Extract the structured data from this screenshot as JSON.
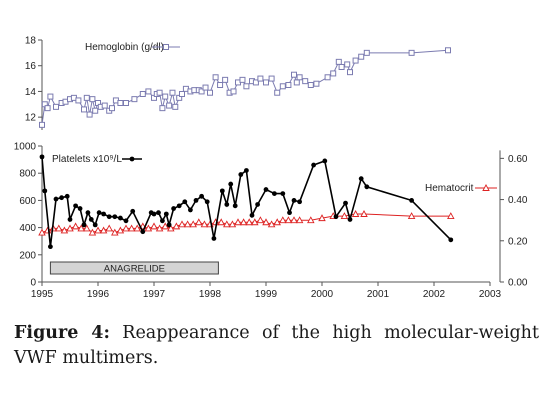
{
  "figure": {
    "caption_label": "Figure 4:",
    "caption_text": "Reappearance of the high molecular-weight VWF multimers."
  },
  "chart_data": [
    {
      "type": "line",
      "ylim": [
        11,
        18
      ],
      "yticks": [
        "12",
        "14",
        "16",
        "18"
      ],
      "series": [
        {
          "name": "Hemoglobin (g/dl)",
          "color": "#7b7bb0",
          "marker": "open-square",
          "x": [
            1995.0,
            1995.05,
            1995.1,
            1995.15,
            1995.25,
            1995.35,
            1995.42,
            1995.5,
            1995.57,
            1995.65,
            1995.75,
            1995.8,
            1995.85,
            1995.9,
            1995.95,
            1996.0,
            1996.05,
            1996.12,
            1996.2,
            1996.25,
            1996.32,
            1996.4,
            1996.5,
            1996.65,
            1996.8,
            1996.9,
            1997.0,
            1997.05,
            1997.1,
            1997.15,
            1997.2,
            1997.27,
            1997.33,
            1997.38,
            1997.45,
            1997.5,
            1997.57,
            1997.65,
            1997.72,
            1997.8,
            1997.85,
            1997.92,
            1998.0,
            1998.1,
            1998.18,
            1998.27,
            1998.35,
            1998.42,
            1998.5,
            1998.58,
            1998.65,
            1998.75,
            1998.82,
            1998.9,
            1999.0,
            1999.1,
            1999.2,
            1999.3,
            1999.4,
            1999.5,
            1999.55,
            1999.6,
            1999.7,
            1999.8,
            1999.9,
            2000.1,
            2000.2,
            2000.3,
            2000.35,
            2000.45,
            2000.5,
            2000.6,
            2000.7,
            2000.8,
            2001.6,
            2002.25
          ],
          "values": [
            11.4,
            13.0,
            12.7,
            13.6,
            12.8,
            13.1,
            13.2,
            13.4,
            13.5,
            13.3,
            12.6,
            13.5,
            12.2,
            13.4,
            12.5,
            13.1,
            12.8,
            12.9,
            12.5,
            12.7,
            13.3,
            13.1,
            13.1,
            13.4,
            13.8,
            14.0,
            13.5,
            13.8,
            13.9,
            12.7,
            13.6,
            12.9,
            13.9,
            12.8,
            13.5,
            13.8,
            14.2,
            14.0,
            14.1,
            14.1,
            14.0,
            14.3,
            13.9,
            15.1,
            14.5,
            14.9,
            13.9,
            14.0,
            14.7,
            14.9,
            14.4,
            14.8,
            14.7,
            15.0,
            14.7,
            15.0,
            13.9,
            14.4,
            14.5,
            15.3,
            14.7,
            15.1,
            14.8,
            14.5,
            14.6,
            15.1,
            15.4,
            16.3,
            15.9,
            16.1,
            15.5,
            16.4,
            16.7,
            17.0,
            17.0,
            17.2
          ]
        }
      ]
    },
    {
      "type": "line",
      "ylim": [
        0,
        1000
      ],
      "yticks": [
        "0",
        "200",
        "400",
        "600",
        "800",
        "1000"
      ],
      "y2lim": [
        0,
        0.66
      ],
      "y2ticks": [
        "0.00",
        "0.20",
        "0.40",
        "0.60"
      ],
      "xlim": [
        1995,
        2003
      ],
      "xticks": [
        "1995",
        "1996",
        "1997",
        "1998",
        "1999",
        "2000",
        "2001",
        "2002",
        "2003"
      ],
      "annotation": "ANAGRELIDE",
      "annotation_range": [
        1995.15,
        1998.15
      ],
      "series": [
        {
          "name": "Platelets x10⁹/L",
          "color": "#000000",
          "marker": "filled-circle",
          "axis": "left",
          "x": [
            1995.0,
            1995.05,
            1995.15,
            1995.25,
            1995.35,
            1995.45,
            1995.5,
            1995.6,
            1995.68,
            1995.75,
            1995.82,
            1995.88,
            1995.95,
            1996.02,
            1996.1,
            1996.2,
            1996.3,
            1996.4,
            1996.5,
            1996.62,
            1996.8,
            1996.95,
            1997.0,
            1997.08,
            1997.15,
            1997.22,
            1997.27,
            1997.35,
            1997.45,
            1997.55,
            1997.65,
            1997.75,
            1997.85,
            1997.95,
            1998.07,
            1998.22,
            1998.3,
            1998.37,
            1998.45,
            1998.55,
            1998.65,
            1998.75,
            1998.85,
            1999.0,
            1999.15,
            1999.3,
            1999.42,
            1999.5,
            1999.6,
            1999.85,
            2000.05,
            2000.25,
            2000.42,
            2000.5,
            2000.7,
            2000.8,
            2001.6,
            2002.3
          ],
          "values": [
            920,
            670,
            260,
            610,
            620,
            630,
            460,
            560,
            540,
            420,
            510,
            460,
            420,
            510,
            500,
            480,
            480,
            470,
            450,
            520,
            370,
            510,
            500,
            510,
            450,
            500,
            420,
            540,
            560,
            590,
            530,
            600,
            630,
            590,
            320,
            670,
            570,
            720,
            560,
            790,
            820,
            490,
            570,
            680,
            650,
            650,
            510,
            600,
            590,
            860,
            890,
            480,
            580,
            460,
            760,
            700,
            600,
            310
          ]
        },
        {
          "name": "Hematocrit",
          "color": "#dd2222",
          "marker": "open-triangle",
          "axis": "right",
          "x": [
            1995.0,
            1995.1,
            1995.2,
            1995.3,
            1995.4,
            1995.5,
            1995.6,
            1995.7,
            1995.8,
            1995.9,
            1996.0,
            1996.1,
            1996.2,
            1996.3,
            1996.4,
            1996.5,
            1996.6,
            1996.7,
            1996.8,
            1996.9,
            1997.0,
            1997.1,
            1997.2,
            1997.3,
            1997.4,
            1997.5,
            1997.6,
            1997.7,
            1997.8,
            1997.9,
            1998.0,
            1998.1,
            1998.2,
            1998.3,
            1998.4,
            1998.5,
            1998.6,
            1998.7,
            1998.8,
            1998.9,
            1999.0,
            1999.1,
            1999.2,
            1999.3,
            1999.4,
            1999.5,
            1999.6,
            1999.8,
            2000.0,
            2000.2,
            2000.4,
            2000.6,
            2000.75,
            2001.6,
            2002.3
          ],
          "values": [
            0.24,
            0.25,
            0.26,
            0.26,
            0.25,
            0.26,
            0.27,
            0.26,
            0.26,
            0.24,
            0.25,
            0.25,
            0.26,
            0.24,
            0.25,
            0.26,
            0.26,
            0.26,
            0.27,
            0.26,
            0.27,
            0.26,
            0.27,
            0.26,
            0.27,
            0.28,
            0.28,
            0.28,
            0.29,
            0.28,
            0.28,
            0.29,
            0.29,
            0.28,
            0.28,
            0.29,
            0.29,
            0.29,
            0.29,
            0.3,
            0.29,
            0.28,
            0.29,
            0.3,
            0.3,
            0.3,
            0.3,
            0.3,
            0.31,
            0.32,
            0.32,
            0.33,
            0.33,
            0.32,
            0.32
          ]
        }
      ]
    }
  ]
}
